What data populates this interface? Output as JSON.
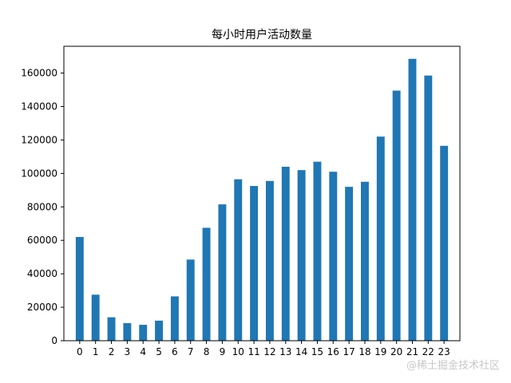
{
  "chart_data": {
    "type": "bar",
    "title": "每小时用户活动数量",
    "xlabel": "",
    "ylabel": "",
    "categories": [
      "0",
      "1",
      "2",
      "3",
      "4",
      "5",
      "6",
      "7",
      "8",
      "9",
      "10",
      "11",
      "12",
      "13",
      "14",
      "15",
      "16",
      "17",
      "18",
      "19",
      "20",
      "21",
      "22",
      "23"
    ],
    "values": [
      62000,
      27500,
      14000,
      10500,
      9500,
      12000,
      26500,
      48500,
      67500,
      81500,
      96500,
      92500,
      95500,
      104000,
      102000,
      107000,
      101000,
      92000,
      95000,
      122000,
      149500,
      168500,
      158500,
      116500
    ],
    "ylim": [
      0,
      176000
    ],
    "yticks": [
      0,
      20000,
      40000,
      60000,
      80000,
      100000,
      120000,
      140000,
      160000
    ],
    "bar_color": "#1f77b4",
    "grid": false,
    "legend": "none"
  },
  "watermark": "@稀土掘金技术社区"
}
